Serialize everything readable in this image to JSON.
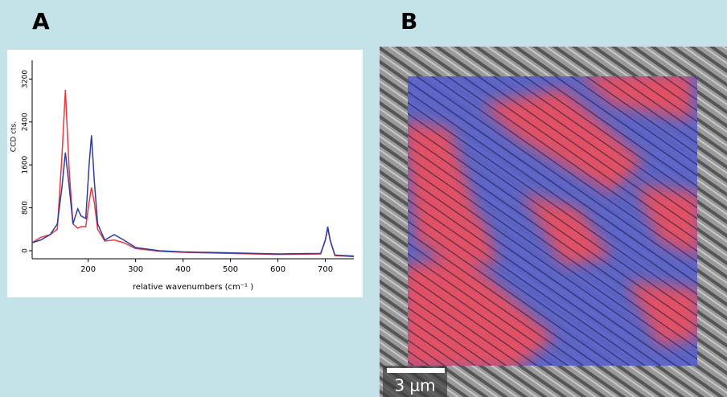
{
  "panels": {
    "a_label": "A",
    "b_label": "B"
  },
  "chart_data": {
    "type": "line",
    "title": "",
    "x_label": "relative wavenumbers (cm⁻¹ )",
    "y_label": "CCD cts.",
    "x": [
      82,
      100,
      120,
      135,
      145,
      152,
      160,
      168,
      178,
      185,
      195,
      202,
      207,
      213,
      220,
      235,
      255,
      275,
      300,
      350,
      400,
      500,
      600,
      690,
      700,
      705,
      710,
      720,
      760
    ],
    "series": [
      {
        "name": "red",
        "color": "#e8383d",
        "values": [
          150,
          250,
          300,
          400,
          1800,
          3000,
          1500,
          500,
          420,
          450,
          450,
          900,
          1180,
          900,
          400,
          180,
          200,
          150,
          40,
          -10,
          -30,
          -50,
          -70,
          -60,
          200,
          420,
          200,
          -90,
          -110
        ]
      },
      {
        "name": "blue",
        "color": "#2f3d9c",
        "values": [
          150,
          200,
          300,
          500,
          1200,
          1830,
          1200,
          500,
          780,
          650,
          600,
          1600,
          2150,
          1300,
          500,
          200,
          300,
          200,
          60,
          0,
          -20,
          -40,
          -60,
          -50,
          200,
          450,
          200,
          -80,
          -100
        ]
      }
    ],
    "xlim": [
      82,
      760
    ],
    "ylim": [
      -150,
      3550
    ],
    "xticks": [
      200,
      300,
      400,
      500,
      600,
      700
    ],
    "yticks": [
      0,
      800,
      1600,
      2400,
      3200
    ]
  },
  "image": {
    "scale_bar": "3 µm"
  }
}
